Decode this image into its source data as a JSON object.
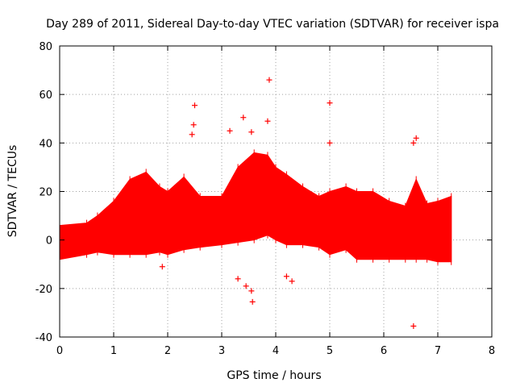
{
  "chart_data": {
    "type": "scatter",
    "title": "Day 289 of 2011, Sidereal Day-to-day VTEC variation (SDTVAR) for receiver ispa",
    "xlabel": "GPS time / hours",
    "ylabel": "SDTVAR / TECUs",
    "xlim": [
      0,
      8
    ],
    "ylim": [
      -40,
      80
    ],
    "x_ticks": [
      0,
      1,
      2,
      3,
      4,
      5,
      6,
      7,
      8
    ],
    "y_ticks": [
      -40,
      -20,
      0,
      20,
      40,
      60,
      80
    ],
    "x_tick_labels": [
      "0",
      "1",
      "2",
      "3",
      "4",
      "5",
      "6",
      "7",
      "8"
    ],
    "y_tick_labels": [
      "-40",
      "-20",
      "0",
      "20",
      "40",
      "60",
      "80"
    ],
    "grid": true,
    "marker": "+",
    "color": "#ff0000",
    "dense_band": [
      {
        "x": 0.0,
        "lo": -8,
        "hi": 6
      },
      {
        "x": 0.5,
        "lo": -6,
        "hi": 7
      },
      {
        "x": 0.7,
        "lo": -5,
        "hi": 10
      },
      {
        "x": 1.0,
        "lo": -6,
        "hi": 16
      },
      {
        "x": 1.3,
        "lo": -6,
        "hi": 25
      },
      {
        "x": 1.6,
        "lo": -6,
        "hi": 28
      },
      {
        "x": 1.85,
        "lo": -5,
        "hi": 22
      },
      {
        "x": 2.0,
        "lo": -6,
        "hi": 20
      },
      {
        "x": 2.3,
        "lo": -4,
        "hi": 26
      },
      {
        "x": 2.6,
        "lo": -3,
        "hi": 18
      },
      {
        "x": 3.0,
        "lo": -2,
        "hi": 18
      },
      {
        "x": 3.3,
        "lo": -1,
        "hi": 30
      },
      {
        "x": 3.6,
        "lo": 0,
        "hi": 36
      },
      {
        "x": 3.85,
        "lo": 2,
        "hi": 35
      },
      {
        "x": 4.0,
        "lo": 0,
        "hi": 30
      },
      {
        "x": 4.2,
        "lo": -2,
        "hi": 27
      },
      {
        "x": 4.5,
        "lo": -2,
        "hi": 22
      },
      {
        "x": 4.8,
        "lo": -3,
        "hi": 18
      },
      {
        "x": 5.0,
        "lo": -6,
        "hi": 20
      },
      {
        "x": 5.3,
        "lo": -4,
        "hi": 22
      },
      {
        "x": 5.5,
        "lo": -8,
        "hi": 20
      },
      {
        "x": 5.8,
        "lo": -8,
        "hi": 20
      },
      {
        "x": 6.1,
        "lo": -8,
        "hi": 16
      },
      {
        "x": 6.4,
        "lo": -8,
        "hi": 14
      },
      {
        "x": 6.6,
        "lo": -8,
        "hi": 25
      },
      {
        "x": 6.8,
        "lo": -8,
        "hi": 15
      },
      {
        "x": 7.0,
        "lo": -9,
        "hi": 16
      },
      {
        "x": 7.25,
        "lo": -9,
        "hi": 18
      }
    ],
    "outliers": [
      {
        "x": 3.88,
        "y": 66
      },
      {
        "x": 5.0,
        "y": 56.5
      },
      {
        "x": 2.5,
        "y": 55.5
      },
      {
        "x": 3.4,
        "y": 50.5
      },
      {
        "x": 2.48,
        "y": 47.5
      },
      {
        "x": 3.15,
        "y": 45
      },
      {
        "x": 2.45,
        "y": 43.5
      },
      {
        "x": 3.55,
        "y": 44.5
      },
      {
        "x": 3.85,
        "y": 49
      },
      {
        "x": 6.6,
        "y": 42
      },
      {
        "x": 6.55,
        "y": 40
      },
      {
        "x": 5.0,
        "y": 40
      },
      {
        "x": 3.3,
        "y": -16
      },
      {
        "x": 3.45,
        "y": -19
      },
      {
        "x": 3.55,
        "y": -21
      },
      {
        "x": 3.57,
        "y": -25.5
      },
      {
        "x": 6.55,
        "y": -35.5
      },
      {
        "x": 4.2,
        "y": -15
      },
      {
        "x": 4.3,
        "y": -17
      },
      {
        "x": 1.9,
        "y": -11
      }
    ]
  }
}
